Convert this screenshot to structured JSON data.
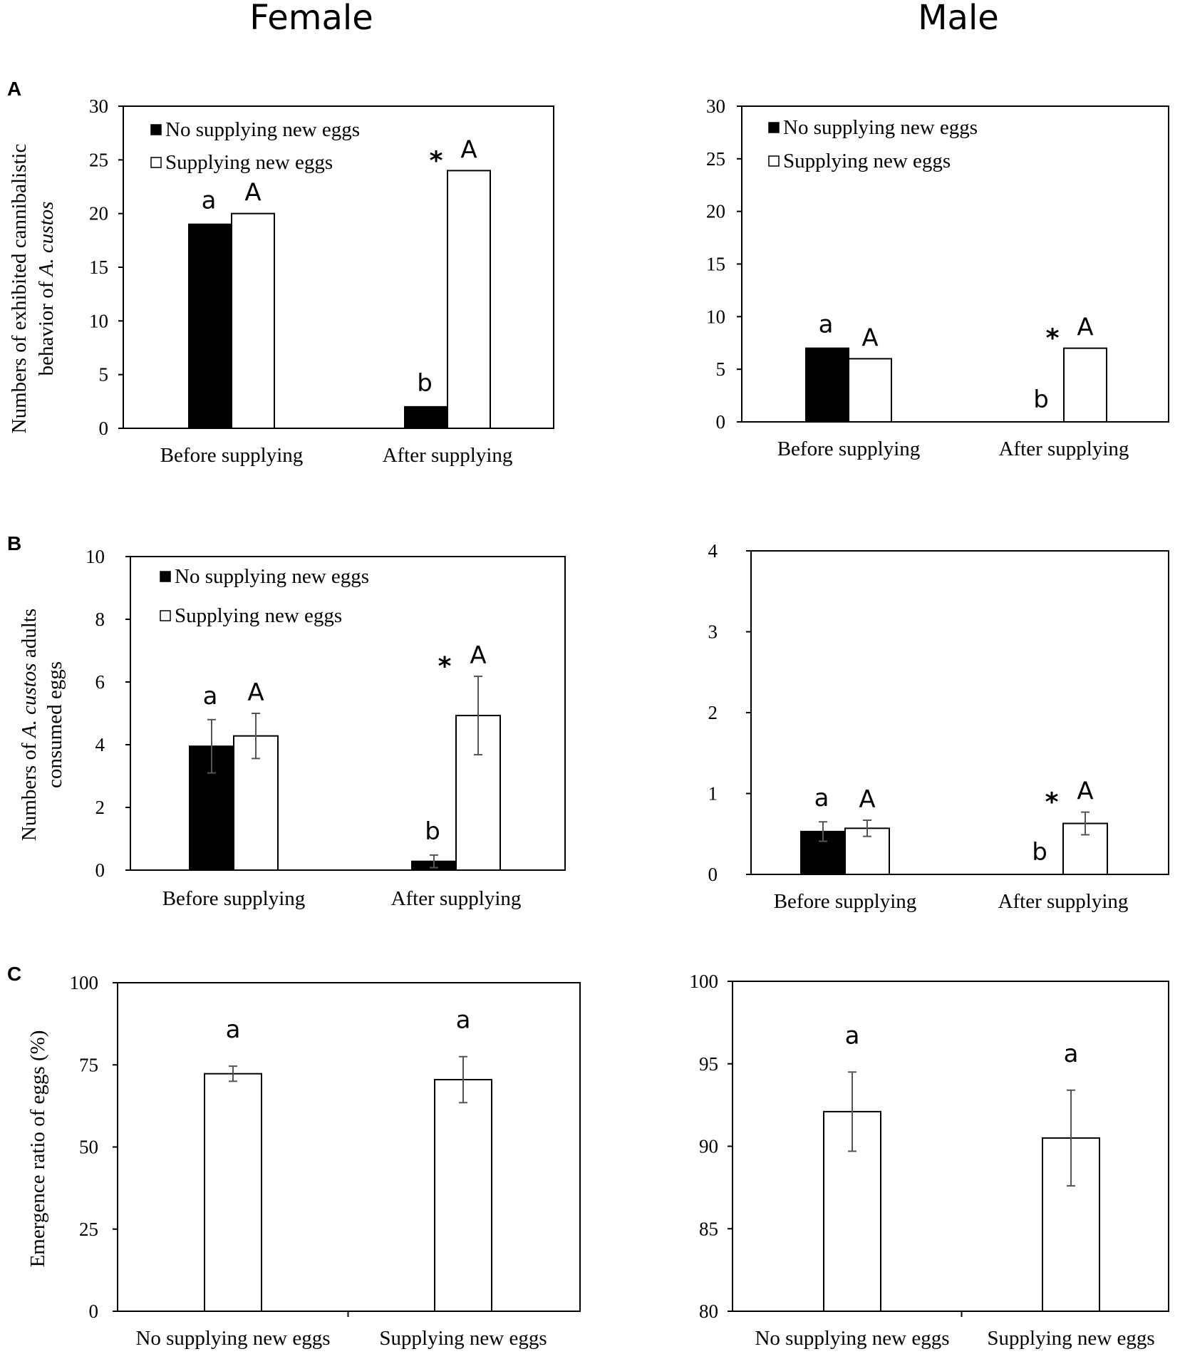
{
  "column_titles": {
    "female": "Female",
    "male": "Male"
  },
  "panel_letters": {
    "A": "A",
    "B": "B",
    "C": "C"
  },
  "ylabels": {
    "A": {
      "line1": "Numbers of exhibited cannibalistic",
      "line2_pre": "behavior of ",
      "line2_it": "A. custos"
    },
    "B": {
      "line1_pre": "Numbers of ",
      "line1_it": "A. custos",
      "line1_post": "  adults",
      "line2": "consumed eggs"
    },
    "C": {
      "line1": "Emergence ratio of eggs (%)"
    }
  },
  "colors": {
    "no_supply": "#000000",
    "supply": "#ffffff",
    "axis": "#000000",
    "errorbar": "#555555"
  },
  "chart_data": [
    {
      "id": "A-female",
      "type": "bar",
      "title": "",
      "xlabel": "",
      "ylabel": "Numbers of exhibited cannibalistic behavior of A. custos",
      "ylim": [
        0,
        30
      ],
      "yticks": [
        0,
        5,
        10,
        15,
        20,
        25,
        30
      ],
      "categories": [
        "Before supplying",
        "After supplying"
      ],
      "legend": [
        "No supplying new eggs",
        "Supplying new eggs"
      ],
      "series": [
        {
          "name": "No supplying new eggs",
          "values": [
            19,
            2
          ],
          "letters": [
            "a",
            "b"
          ]
        },
        {
          "name": "Supplying new eggs",
          "values": [
            20,
            24
          ],
          "letters": [
            "A",
            "A"
          ],
          "stars": [
            false,
            true
          ]
        }
      ]
    },
    {
      "id": "A-male",
      "type": "bar",
      "title": "",
      "xlabel": "",
      "ylabel": "",
      "ylim": [
        0,
        30
      ],
      "yticks": [
        0,
        5,
        10,
        15,
        20,
        25,
        30
      ],
      "categories": [
        "Before supplying",
        "After supplying"
      ],
      "legend": [
        "No supplying new eggs",
        "Supplying new eggs"
      ],
      "series": [
        {
          "name": "No supplying new eggs",
          "values": [
            7,
            0
          ],
          "letters": [
            "a",
            "b"
          ]
        },
        {
          "name": "Supplying new eggs",
          "values": [
            6,
            7
          ],
          "letters": [
            "A",
            "A"
          ],
          "stars": [
            false,
            true
          ]
        }
      ]
    },
    {
      "id": "B-female",
      "type": "bar",
      "title": "",
      "xlabel": "",
      "ylabel": "Numbers of A. custos adults consumed eggs",
      "ylim": [
        0,
        10
      ],
      "yticks": [
        0,
        2,
        4,
        6,
        8,
        10
      ],
      "categories": [
        "Before supplying",
        "After supplying"
      ],
      "legend": [
        "No supplying new eggs",
        "Supplying new eggs"
      ],
      "series": [
        {
          "name": "No supplying new eggs",
          "values": [
            3.95,
            0.28
          ],
          "errors": [
            0.85,
            0.2
          ],
          "letters": [
            "a",
            "b"
          ]
        },
        {
          "name": "Supplying new eggs",
          "values": [
            4.28,
            4.93
          ],
          "errors": [
            0.72,
            1.25
          ],
          "letters": [
            "A",
            "A"
          ],
          "stars": [
            false,
            true
          ]
        }
      ]
    },
    {
      "id": "B-male",
      "type": "bar",
      "title": "",
      "xlabel": "",
      "ylabel": "",
      "ylim": [
        0,
        4
      ],
      "yticks": [
        0,
        1,
        2,
        3,
        4
      ],
      "categories": [
        "Before supplying",
        "After supplying"
      ],
      "legend": [],
      "series": [
        {
          "name": "No supplying new eggs",
          "values": [
            0.53,
            0
          ],
          "errors": [
            0.12,
            0
          ],
          "letters": [
            "a",
            "b"
          ]
        },
        {
          "name": "Supplying new eggs",
          "values": [
            0.57,
            0.63
          ],
          "errors": [
            0.1,
            0.14
          ],
          "letters": [
            "A",
            "A"
          ],
          "stars": [
            false,
            true
          ]
        }
      ]
    },
    {
      "id": "C-female",
      "type": "bar",
      "title": "",
      "xlabel": "",
      "ylabel": "Emergence ratio of eggs (%)",
      "ylim": [
        0,
        100
      ],
      "yticks": [
        0,
        25,
        50,
        75,
        100
      ],
      "categories": [
        "No supplying new eggs",
        "Supplying new eggs"
      ],
      "legend": [],
      "series": [
        {
          "name": "Emergence ratio",
          "values": [
            72.3,
            70.5
          ],
          "errors": [
            2.3,
            7.0
          ],
          "letters": [
            "a",
            "a"
          ]
        }
      ]
    },
    {
      "id": "C-male",
      "type": "bar",
      "title": "",
      "xlabel": "",
      "ylabel": "",
      "ylim": [
        80,
        100
      ],
      "yticks": [
        80,
        85,
        90,
        95,
        100
      ],
      "categories": [
        "No supplying new eggs",
        "Supplying new eggs"
      ],
      "legend": [],
      "series": [
        {
          "name": "Emergence ratio",
          "values": [
            92.1,
            90.5
          ],
          "errors": [
            2.4,
            2.9
          ],
          "letters": [
            "a",
            "a"
          ]
        }
      ]
    }
  ]
}
